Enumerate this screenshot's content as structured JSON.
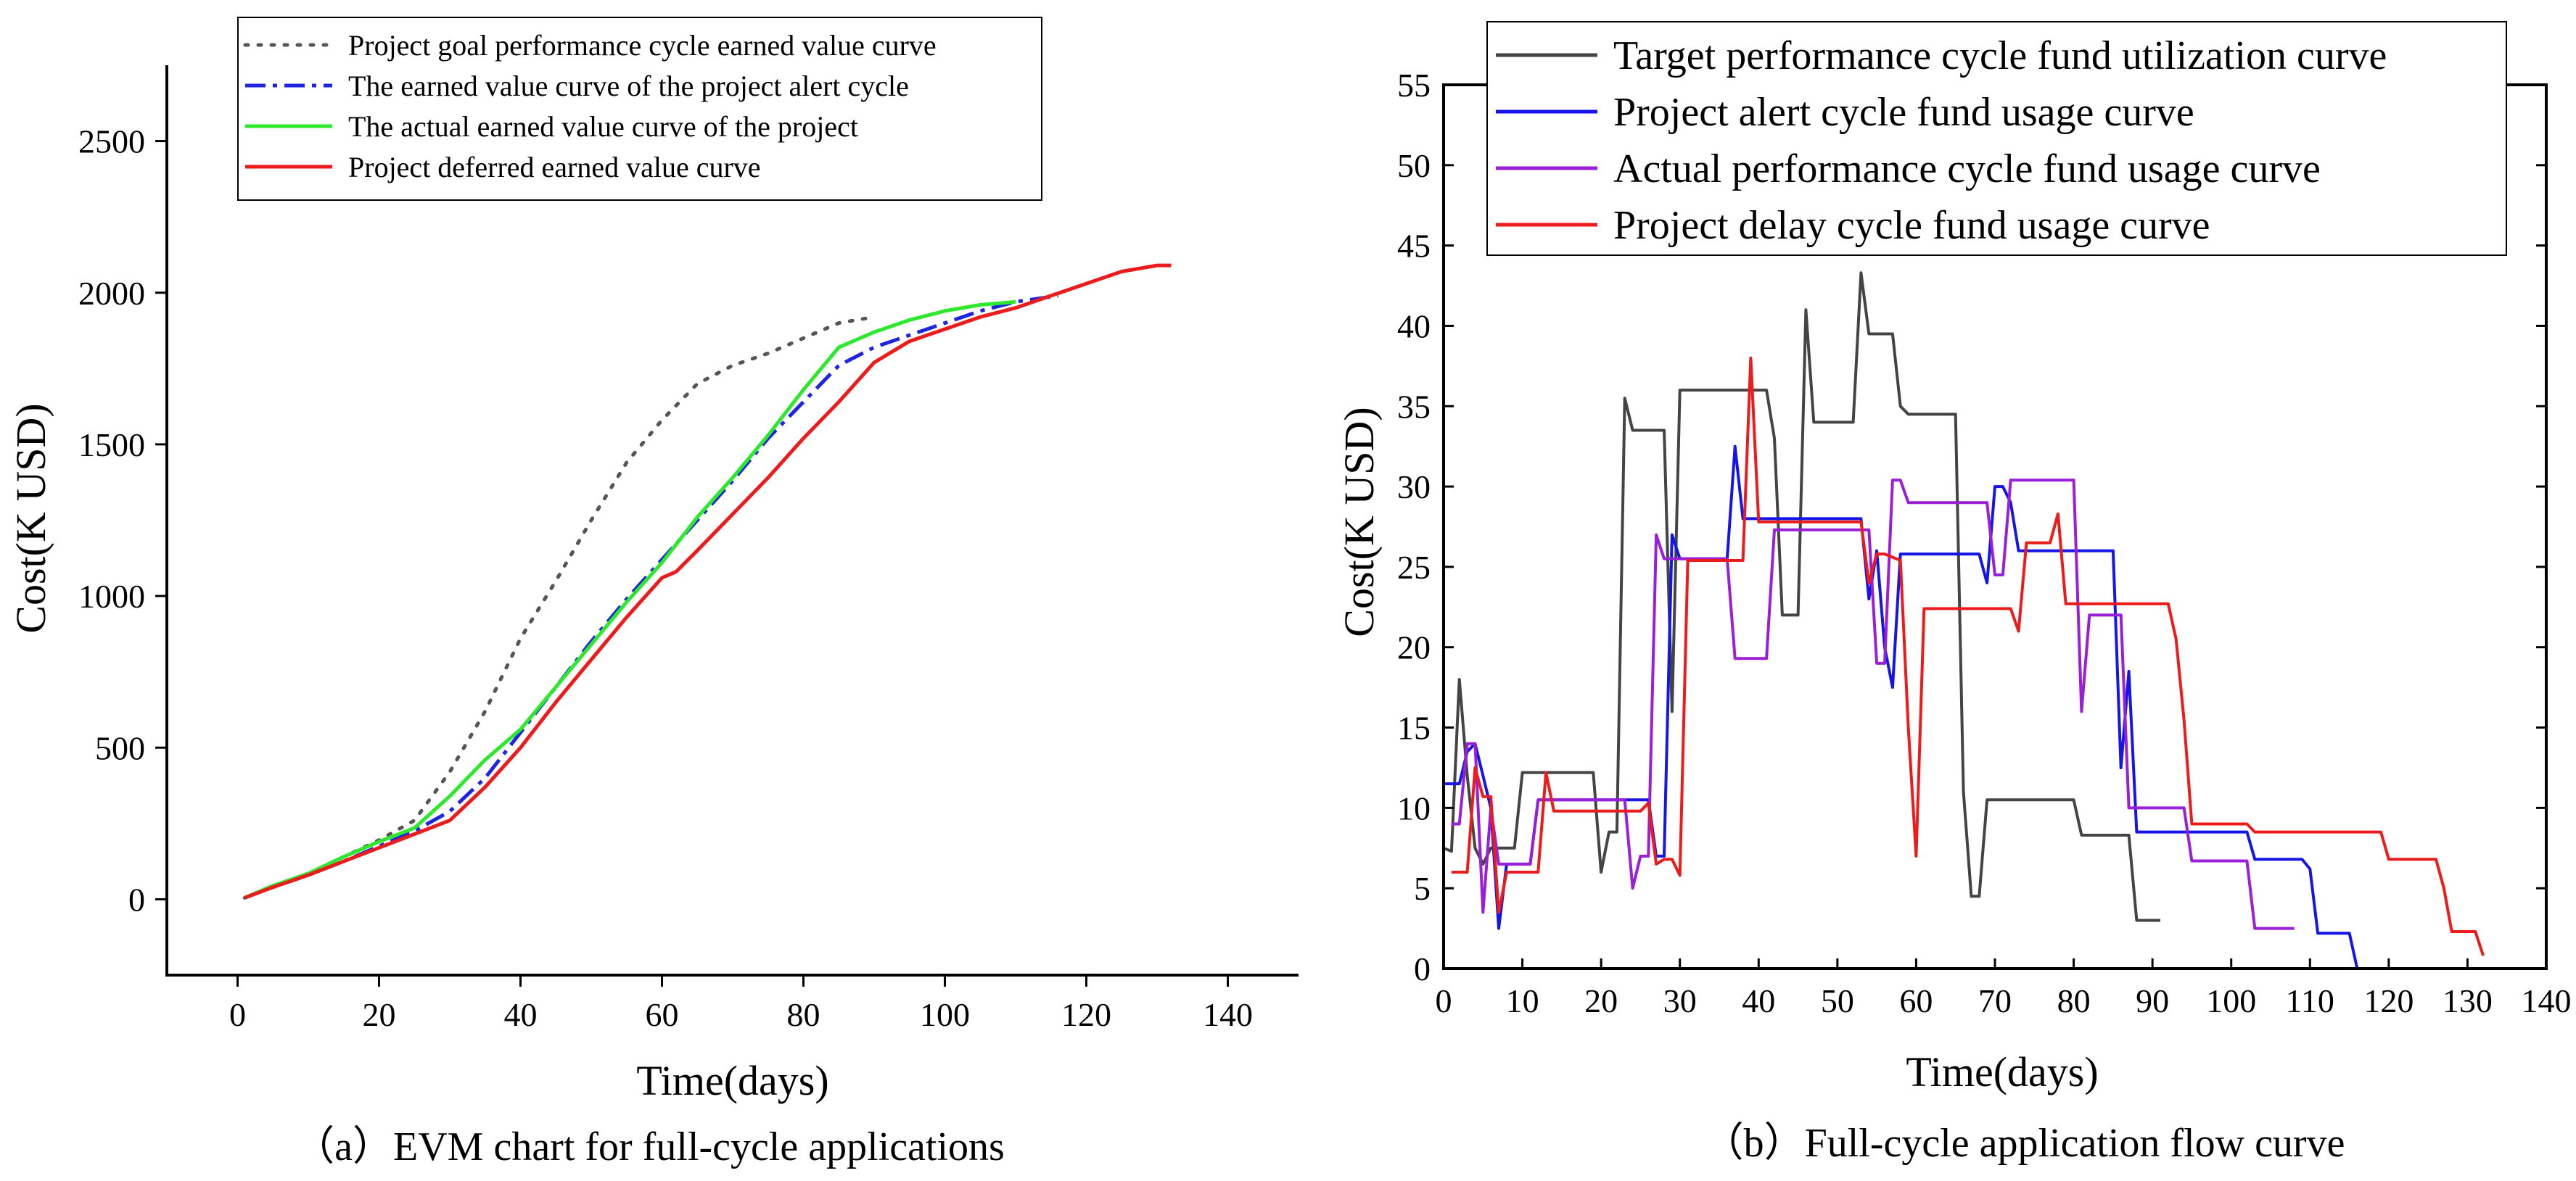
{
  "chart_data": [
    {
      "id": "a",
      "type": "line",
      "caption": "（a）EVM chart for full-cycle applications",
      "xlabel": "Time(days)",
      "ylabel": "Cost(K USD)",
      "xlim": [
        -10,
        150
      ],
      "ylim": [
        -250,
        2750
      ],
      "xticks": [
        0,
        20,
        40,
        60,
        80,
        100,
        120,
        140
      ],
      "yticks": [
        0,
        500,
        1000,
        1500,
        2000,
        2500
      ],
      "grid": false,
      "legend_position": "top-center",
      "series": [
        {
          "name": "Project goal performance cycle earned value curve",
          "color": "#555555",
          "dash": "dotted",
          "x": [
            1,
            5,
            10,
            15,
            20,
            25,
            30,
            35,
            40,
            45,
            50,
            55,
            60,
            65,
            70,
            75,
            80,
            85,
            90
          ],
          "y": [
            5,
            40,
            85,
            140,
            195,
            260,
            420,
            620,
            860,
            1050,
            1250,
            1440,
            1580,
            1700,
            1760,
            1800,
            1850,
            1900,
            1920
          ]
        },
        {
          "name": "The earned value curve of the project alert cycle",
          "color": "#1f24e0",
          "dash": "dashdot",
          "x": [
            1,
            5,
            10,
            15,
            20,
            25,
            30,
            35,
            40,
            45,
            50,
            55,
            60,
            65,
            70,
            75,
            80,
            85,
            90,
            95,
            100,
            105,
            110,
            116
          ],
          "y": [
            5,
            40,
            80,
            125,
            175,
            225,
            290,
            400,
            550,
            700,
            850,
            990,
            1120,
            1250,
            1380,
            1520,
            1640,
            1760,
            1820,
            1860,
            1900,
            1940,
            1970,
            1990
          ]
        },
        {
          "name": "The actual earned value curve of the project",
          "color": "#2ee82e",
          "dash": "solid",
          "x": [
            1,
            5,
            10,
            15,
            20,
            25,
            30,
            35,
            40,
            45,
            50,
            55,
            60,
            65,
            70,
            75,
            80,
            85,
            90,
            95,
            100,
            105,
            110
          ],
          "y": [
            5,
            45,
            85,
            140,
            190,
            235,
            340,
            460,
            560,
            700,
            840,
            980,
            1110,
            1260,
            1390,
            1530,
            1680,
            1820,
            1870,
            1910,
            1940,
            1960,
            1970
          ]
        },
        {
          "name": "Project deferred earned value curve",
          "color": "#ec1c1c",
          "dash": "solid",
          "x": [
            1,
            5,
            10,
            15,
            20,
            25,
            30,
            35,
            40,
            45,
            50,
            55,
            60,
            62,
            65,
            70,
            75,
            80,
            85,
            90,
            95,
            100,
            105,
            110,
            115,
            120,
            125,
            130,
            132
          ],
          "y": [
            5,
            40,
            80,
            125,
            170,
            215,
            260,
            370,
            500,
            650,
            790,
            930,
            1060,
            1080,
            1150,
            1270,
            1390,
            1520,
            1640,
            1770,
            1840,
            1880,
            1920,
            1950,
            1990,
            2030,
            2070,
            2090,
            2090
          ]
        }
      ]
    },
    {
      "id": "b",
      "type": "line",
      "caption": "（b）Full-cycle application flow curve",
      "xlabel": "Time(days)",
      "ylabel": "Cost(K USD)",
      "xlim": [
        0,
        140
      ],
      "ylim": [
        0,
        55
      ],
      "xticks": [
        0,
        10,
        20,
        30,
        40,
        50,
        60,
        70,
        80,
        90,
        100,
        110,
        120,
        130,
        140
      ],
      "yticks": [
        0,
        5,
        10,
        15,
        20,
        25,
        30,
        35,
        40,
        45,
        50,
        55
      ],
      "grid": false,
      "legend_position": "top-left",
      "series": [
        {
          "name": "Target performance cycle fund utilization curve",
          "color": "#444444",
          "x": [
            0,
            1,
            2,
            3,
            4,
            5,
            6,
            7,
            8,
            9,
            10,
            11,
            19,
            20,
            21,
            22,
            23,
            24,
            28,
            29,
            30,
            41,
            42,
            43,
            45,
            46,
            47,
            52,
            53,
            54,
            57,
            58,
            59,
            65,
            66,
            67,
            68,
            69,
            80,
            81,
            87,
            88,
            91
          ],
          "y": [
            7.5,
            7.3,
            18,
            12,
            7.5,
            6.5,
            7.5,
            7.5,
            7.5,
            7.5,
            12.2,
            12.2,
            12.2,
            6,
            8.5,
            8.5,
            35.5,
            33.5,
            33.5,
            16,
            36,
            36,
            33,
            22,
            22,
            41,
            34,
            34,
            43.3,
            39.5,
            39.5,
            35,
            34.5,
            34.5,
            11,
            4.5,
            4.5,
            10.5,
            10.5,
            8.3,
            8.3,
            3,
            3
          ]
        },
        {
          "name": "Project alert cycle fund usage curve",
          "color": "#1515e8",
          "x": [
            0,
            2,
            3,
            4,
            5,
            6,
            7,
            8,
            10,
            11,
            12,
            13,
            26,
            27,
            28,
            29,
            30,
            35,
            36,
            37,
            38,
            39,
            53,
            54,
            55,
            56,
            57,
            58,
            68,
            69,
            70,
            71,
            72,
            73,
            84,
            85,
            86,
            87,
            88,
            90,
            102,
            103,
            109,
            110,
            111,
            115,
            116
          ],
          "y": [
            11.5,
            11.5,
            13.5,
            14,
            12,
            10,
            2.5,
            6.5,
            6.5,
            6.5,
            10.5,
            10.5,
            10.5,
            7,
            7,
            27,
            25.5,
            25.5,
            25.5,
            32.5,
            28,
            28,
            28,
            23,
            26,
            20,
            17.5,
            25.8,
            25.8,
            24,
            30,
            30,
            29,
            26,
            26,
            26,
            12.5,
            18.5,
            8.5,
            8.5,
            8.5,
            6.8,
            6.8,
            6.2,
            2.2,
            2.2,
            0
          ]
        },
        {
          "name": "Actual performance cycle fund usage curve",
          "color": "#9b1fd6",
          "x": [
            1,
            2,
            3,
            4,
            5,
            6,
            7,
            8,
            10,
            11,
            12,
            13,
            23,
            24,
            25,
            26,
            27,
            28,
            29,
            30,
            31,
            36,
            37,
            41,
            42,
            53,
            54,
            55,
            56,
            57,
            58,
            59,
            68,
            69,
            70,
            71,
            72,
            73,
            80,
            81,
            82,
            86,
            87,
            88,
            94,
            95,
            101,
            102,
            103,
            105,
            108
          ],
          "y": [
            9,
            9,
            14,
            14,
            3.5,
            10,
            6.5,
            6.5,
            6.5,
            6.5,
            10.5,
            10.5,
            10.5,
            5,
            7,
            7,
            27,
            25.5,
            25.5,
            25.5,
            25.5,
            25.5,
            19.3,
            19.3,
            27.3,
            27.3,
            27.3,
            19,
            19,
            30.4,
            30.4,
            29,
            29,
            29,
            24.5,
            24.5,
            30.4,
            30.4,
            30.4,
            16,
            22,
            22,
            10,
            10,
            10,
            6.7,
            6.7,
            6.7,
            2.5,
            2.5,
            2.5
          ]
        },
        {
          "name": "Project delay cycle fund usage curve",
          "color": "#ec1c1c",
          "x": [
            1,
            2,
            3,
            4,
            5,
            6,
            7,
            8,
            12,
            13,
            14,
            15,
            25,
            26,
            27,
            28,
            29,
            30,
            31,
            38,
            39,
            40,
            53,
            54,
            55,
            56,
            58,
            59,
            60,
            61,
            62,
            63,
            72,
            73,
            74,
            77,
            78,
            79,
            80,
            92,
            93,
            94,
            95,
            102,
            103,
            119,
            120,
            126,
            127,
            128,
            131,
            132
          ],
          "y": [
            6,
            6,
            6,
            12.5,
            10.7,
            10.7,
            3.5,
            6,
            6,
            12.2,
            9.8,
            9.8,
            9.8,
            10.3,
            6.5,
            6.8,
            6.8,
            5.8,
            25.4,
            25.4,
            38,
            27.8,
            27.8,
            24,
            25.8,
            25.8,
            25.4,
            15,
            7,
            22.4,
            22.4,
            22.4,
            22.4,
            21,
            26.5,
            26.5,
            28.3,
            22.7,
            22.7,
            22.7,
            20.5,
            15.5,
            9,
            9,
            8.5,
            8.5,
            6.8,
            6.8,
            5,
            2.3,
            2.3,
            0.8
          ]
        }
      ]
    }
  ]
}
